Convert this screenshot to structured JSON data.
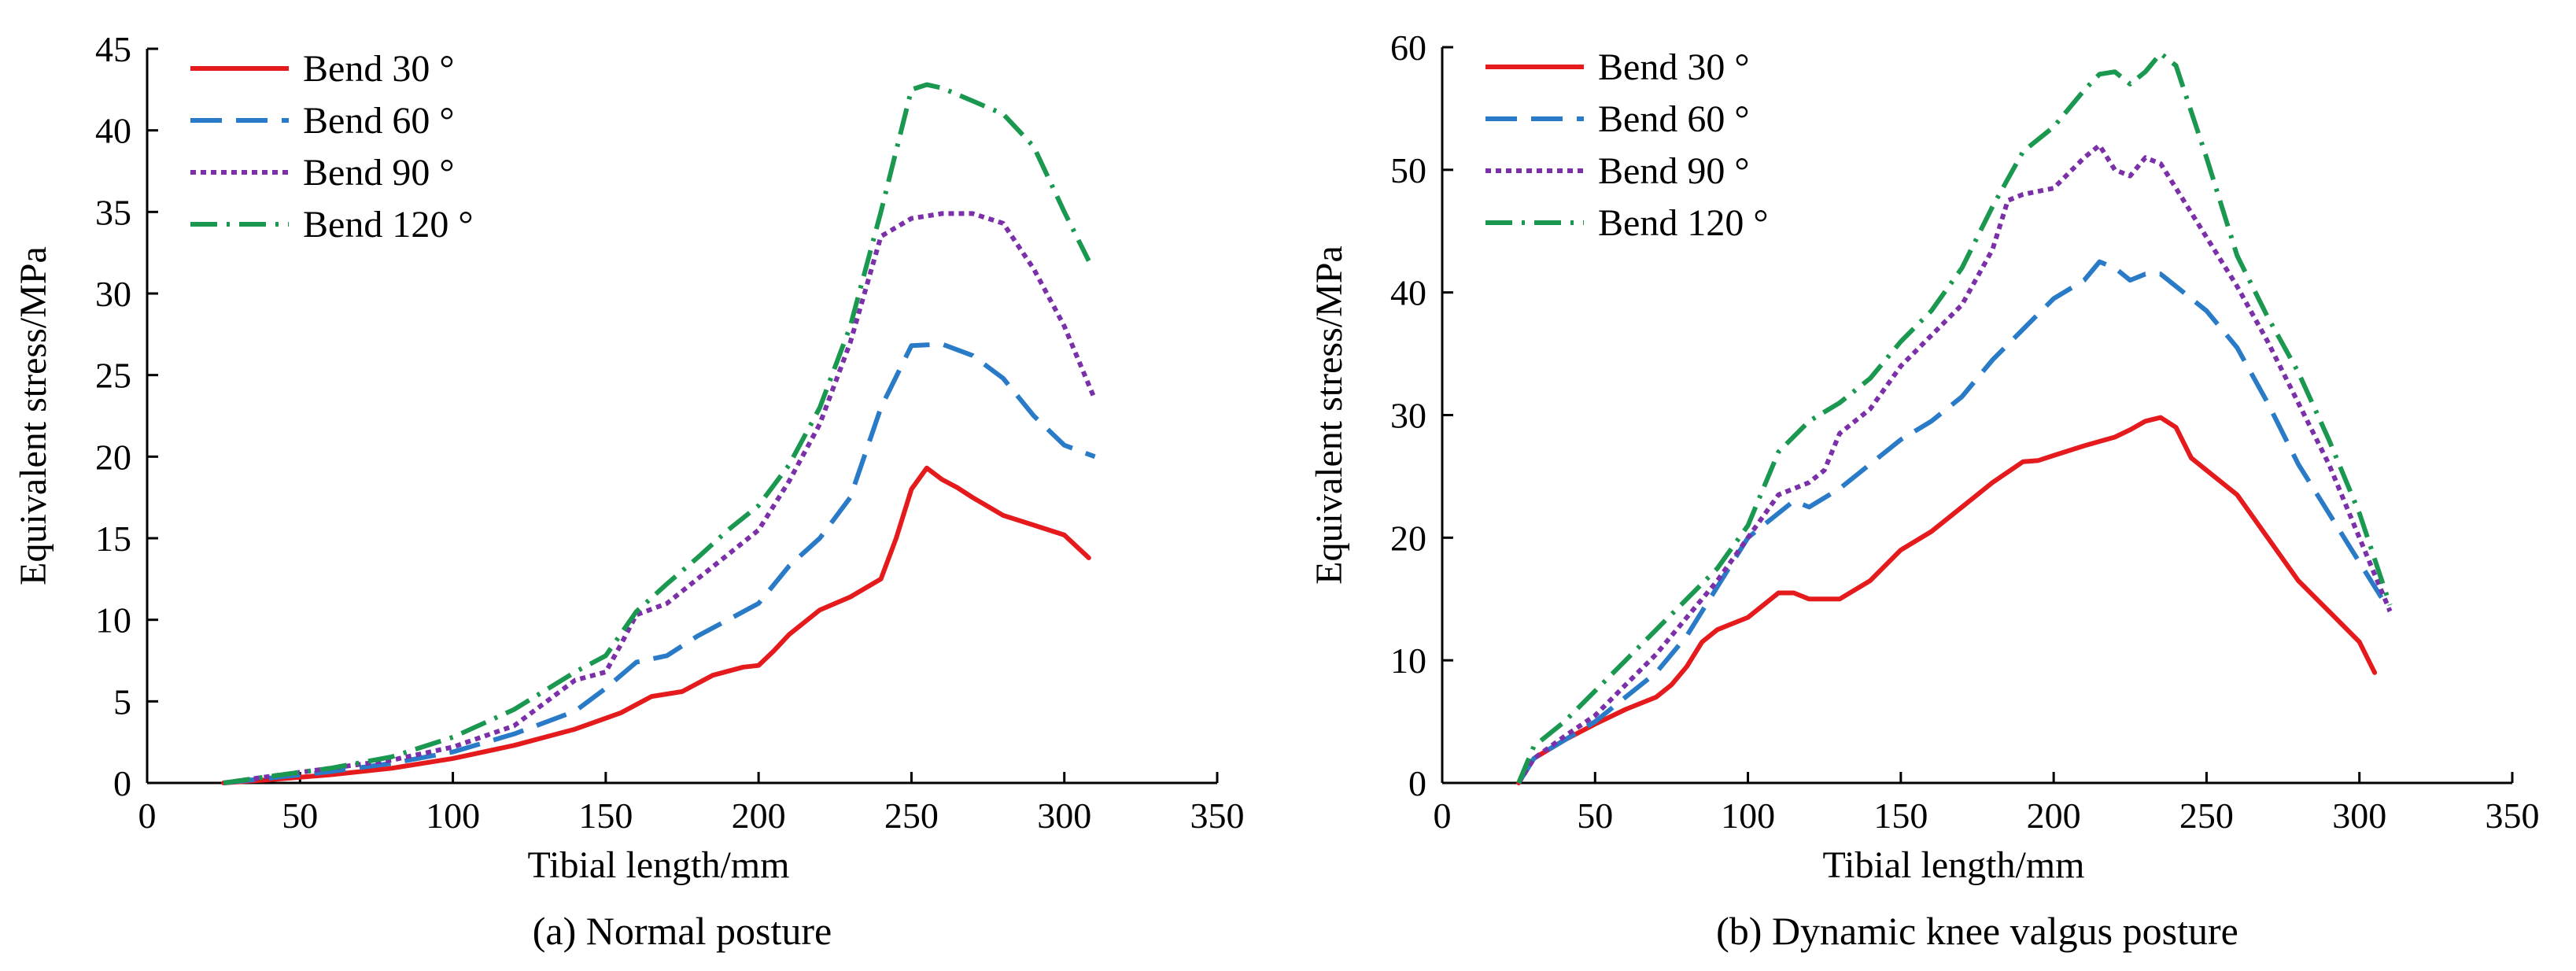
{
  "chart_data": [
    {
      "type": "line",
      "caption": "(a) Normal posture",
      "xlabel": "Tibial length/mm",
      "ylabel": "Equivalent stress/MPa",
      "xlim": [
        0,
        350
      ],
      "ylim": [
        0,
        45
      ],
      "xticks": [
        0,
        50,
        100,
        150,
        200,
        250,
        300,
        350
      ],
      "yticks": [
        0,
        5,
        10,
        15,
        20,
        25,
        30,
        35,
        40,
        45
      ],
      "grid": false,
      "legend_position": "top-left",
      "series": [
        {
          "name": "Bend 30 °",
          "color": "#e41a1c",
          "dash": "solid",
          "x": [
            25,
            40,
            60,
            80,
            100,
            120,
            140,
            155,
            165,
            175,
            185,
            195,
            200,
            205,
            210,
            220,
            230,
            240,
            245,
            250,
            255,
            260,
            265,
            270,
            280,
            290,
            300,
            308
          ],
          "y": [
            0,
            0.2,
            0.5,
            0.9,
            1.5,
            2.3,
            3.3,
            4.3,
            5.3,
            5.6,
            6.6,
            7.1,
            7.2,
            8.1,
            9.1,
            10.6,
            11.4,
            12.5,
            15.0,
            18.0,
            19.3,
            18.6,
            18.1,
            17.5,
            16.4,
            15.8,
            15.2,
            13.8
          ]
        },
        {
          "name": "Bend 60 °",
          "color": "#2a7bc7",
          "dash": "long",
          "x": [
            25,
            40,
            60,
            80,
            100,
            120,
            140,
            150,
            160,
            170,
            180,
            190,
            200,
            210,
            220,
            230,
            240,
            250,
            260,
            270,
            280,
            290,
            300,
            310
          ],
          "y": [
            0,
            0.3,
            0.7,
            1.2,
            1.9,
            3.0,
            4.4,
            5.8,
            7.4,
            7.8,
            9.0,
            10.0,
            11.0,
            13.3,
            15.0,
            17.5,
            23.0,
            26.8,
            26.9,
            26.2,
            24.8,
            22.5,
            20.7,
            20.0
          ]
        },
        {
          "name": "Bend 90 °",
          "color": "#7b2fa8",
          "dash": "dotted",
          "x": [
            25,
            40,
            60,
            80,
            100,
            120,
            140,
            150,
            155,
            160,
            170,
            180,
            190,
            200,
            210,
            220,
            230,
            240,
            250,
            260,
            270,
            280,
            290,
            300,
            310
          ],
          "y": [
            0,
            0.4,
            0.9,
            1.4,
            2.2,
            3.5,
            6.3,
            6.8,
            8.5,
            10.3,
            11.0,
            12.5,
            14.0,
            15.5,
            18.5,
            22.0,
            27.0,
            33.5,
            34.6,
            34.9,
            34.9,
            34.3,
            31.5,
            28.0,
            23.5
          ]
        },
        {
          "name": "Bend 120 °",
          "color": "#1a9850",
          "dash": "dashdot",
          "x": [
            25,
            40,
            60,
            80,
            100,
            120,
            140,
            150,
            160,
            170,
            180,
            190,
            200,
            210,
            220,
            230,
            240,
            250,
            255,
            260,
            270,
            280,
            290,
            300,
            308
          ],
          "y": [
            0,
            0.4,
            0.9,
            1.6,
            2.8,
            4.5,
            6.8,
            7.8,
            10.5,
            12.2,
            13.8,
            15.5,
            17.0,
            19.5,
            23.0,
            28.0,
            35.0,
            42.5,
            42.8,
            42.6,
            41.8,
            41.0,
            39.0,
            35.0,
            32.0
          ]
        }
      ]
    },
    {
      "type": "line",
      "caption": "(b) Dynamic knee valgus posture",
      "xlabel": "Tibial length/mm",
      "ylabel": "Equivalent stress/MPa",
      "xlim": [
        0,
        350
      ],
      "ylim": [
        0,
        60
      ],
      "xticks": [
        0,
        50,
        100,
        150,
        200,
        250,
        300,
        350
      ],
      "yticks": [
        0,
        10,
        20,
        30,
        40,
        50,
        60
      ],
      "grid": false,
      "legend_position": "top-left",
      "series": [
        {
          "name": "Bend 30 °",
          "color": "#e41a1c",
          "dash": "solid",
          "x": [
            25,
            30,
            40,
            50,
            60,
            70,
            75,
            80,
            85,
            90,
            100,
            110,
            115,
            120,
            130,
            140,
            150,
            160,
            170,
            180,
            190,
            195,
            200,
            210,
            220,
            225,
            230,
            235,
            240,
            245,
            250,
            260,
            270,
            280,
            290,
            300,
            305
          ],
          "y": [
            0,
            2.0,
            3.5,
            4.8,
            6.0,
            7.0,
            8.0,
            9.5,
            11.5,
            12.5,
            13.5,
            15.5,
            15.5,
            15.0,
            15.0,
            16.5,
            19.0,
            20.5,
            22.5,
            24.5,
            26.2,
            26.3,
            26.7,
            27.5,
            28.2,
            28.8,
            29.5,
            29.8,
            29.0,
            26.5,
            25.5,
            23.5,
            20.0,
            16.5,
            14.0,
            11.5,
            9.0
          ]
        },
        {
          "name": "Bend 60 °",
          "color": "#2a7bc7",
          "dash": "long",
          "x": [
            25,
            30,
            40,
            50,
            60,
            70,
            75,
            80,
            85,
            90,
            95,
            100,
            110,
            115,
            120,
            130,
            140,
            150,
            160,
            170,
            180,
            190,
            200,
            210,
            215,
            220,
            225,
            230,
            235,
            240,
            250,
            260,
            270,
            280,
            290,
            300,
            310
          ],
          "y": [
            0,
            2.0,
            3.5,
            5.0,
            7.0,
            9.0,
            10.5,
            12.0,
            14.0,
            16.0,
            18.0,
            20.0,
            22.0,
            23.0,
            22.5,
            24.0,
            26.0,
            28.0,
            29.5,
            31.5,
            34.5,
            37.0,
            39.5,
            41.0,
            42.5,
            42.0,
            41.0,
            41.5,
            41.5,
            40.5,
            38.5,
            35.5,
            31.0,
            26.0,
            22.0,
            18.0,
            14.0
          ]
        },
        {
          "name": "Bend 90 °",
          "color": "#7b2fa8",
          "dash": "dotted",
          "x": [
            25,
            30,
            40,
            50,
            60,
            70,
            80,
            90,
            100,
            110,
            120,
            125,
            130,
            140,
            150,
            160,
            170,
            180,
            185,
            190,
            200,
            210,
            215,
            220,
            225,
            230,
            235,
            240,
            250,
            260,
            270,
            280,
            290,
            300,
            310
          ],
          "y": [
            0,
            2.0,
            3.8,
            5.5,
            8.0,
            10.5,
            13.5,
            16.5,
            20.0,
            23.5,
            24.5,
            25.5,
            28.5,
            30.5,
            34.0,
            36.5,
            39.0,
            43.5,
            47.5,
            48.0,
            48.5,
            51.0,
            52.0,
            50.0,
            49.5,
            51.0,
            50.5,
            48.5,
            44.5,
            40.5,
            36.0,
            31.0,
            26.0,
            20.0,
            14.0
          ]
        },
        {
          "name": "Bend 120 °",
          "color": "#1a9850",
          "dash": "dashdot",
          "x": [
            25,
            30,
            40,
            50,
            60,
            70,
            80,
            90,
            100,
            110,
            120,
            130,
            140,
            150,
            160,
            170,
            180,
            190,
            200,
            210,
            215,
            220,
            225,
            230,
            235,
            240,
            250,
            260,
            270,
            280,
            290,
            300,
            310
          ],
          "y": [
            0,
            3.0,
            5.0,
            7.5,
            10.0,
            12.5,
            15.0,
            17.5,
            21.0,
            27.0,
            29.5,
            31.0,
            33.0,
            36.0,
            38.5,
            42.0,
            47.0,
            51.5,
            53.5,
            56.5,
            57.8,
            58.0,
            57.0,
            58.0,
            59.5,
            58.5,
            51.0,
            43.0,
            38.0,
            33.5,
            28.0,
            22.0,
            14.5
          ]
        }
      ]
    }
  ]
}
